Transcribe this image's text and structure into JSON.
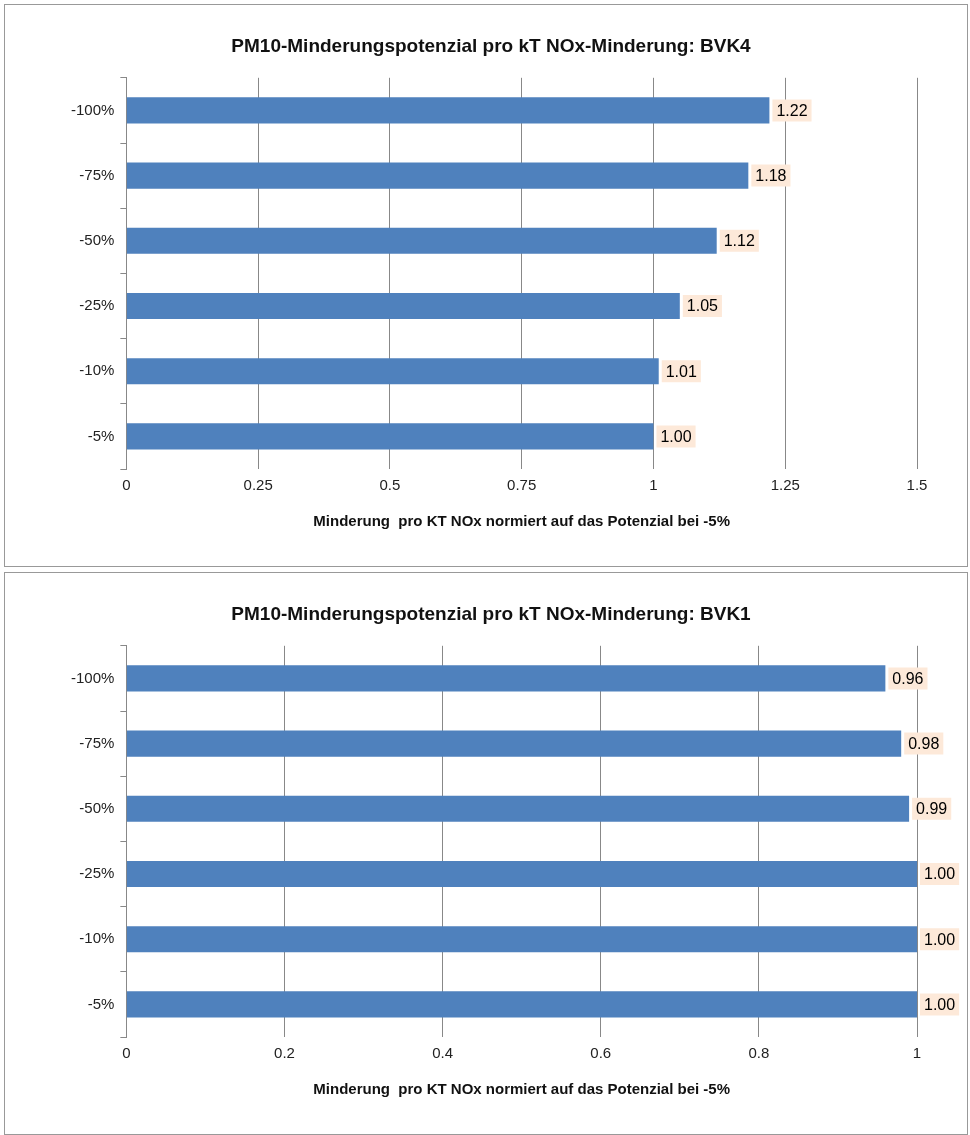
{
  "chart_data": [
    {
      "type": "bar",
      "orientation": "horizontal",
      "title": "PM10-Minderungspotenzial pro kT NOx-Minderung: BVK4",
      "xlabel": "Minderung  pro KT NOx normiert auf das Potenzial bei -5%",
      "categories": [
        "-100%",
        "-75%",
        "-50%",
        "-25%",
        "-10%",
        "-5%"
      ],
      "values": [
        1.22,
        1.18,
        1.12,
        1.05,
        1.01,
        1.0
      ],
      "value_labels": [
        "1.22",
        "1.18",
        "1.12",
        "1.05",
        "1.01",
        "1.00"
      ],
      "color": "#4f81bd",
      "xlim": [
        0,
        1.5
      ],
      "xticks": [
        0,
        0.25,
        0.5,
        0.75,
        1,
        1.25,
        1.5
      ],
      "grid": "x",
      "legend": false
    },
    {
      "type": "bar",
      "orientation": "horizontal",
      "title": "PM10-Minderungspotenzial pro kT NOx-Minderung: BVK1",
      "xlabel": "Minderung  pro KT NOx normiert auf das Potenzial bei -5%",
      "categories": [
        "-100%",
        "-75%",
        "-50%",
        "-25%",
        "-10%",
        "-5%"
      ],
      "values": [
        0.96,
        0.98,
        0.99,
        1.0,
        1.0,
        1.0
      ],
      "value_labels": [
        "0.96",
        "0.98",
        "0.99",
        "1.00",
        "1.00",
        "1.00"
      ],
      "color": "#4f81bd",
      "xlim": [
        0,
        1
      ],
      "xticks": [
        0,
        0.2,
        0.4,
        0.6,
        0.8,
        1
      ],
      "grid": "x",
      "legend": false
    }
  ]
}
